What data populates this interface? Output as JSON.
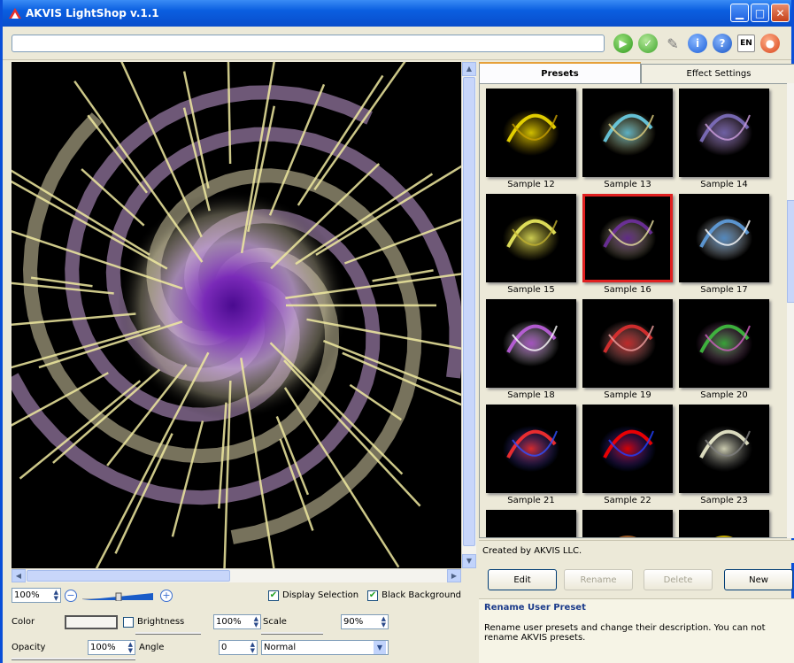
{
  "window": {
    "title": "AKVIS LightShop v.1.1"
  },
  "toolbar": {
    "path_value": "",
    "language": "EN"
  },
  "tabs": [
    {
      "label": "Presets",
      "active": true
    },
    {
      "label": "Effect Settings",
      "active": false
    }
  ],
  "presets": [
    {
      "label": "Sample 12",
      "selected": false
    },
    {
      "label": "Sample 13",
      "selected": false
    },
    {
      "label": "Sample 14",
      "selected": false
    },
    {
      "label": "Sample 15",
      "selected": false
    },
    {
      "label": "Sample 16",
      "selected": true
    },
    {
      "label": "Sample 17",
      "selected": false
    },
    {
      "label": "Sample 18",
      "selected": false
    },
    {
      "label": "Sample 19",
      "selected": false
    },
    {
      "label": "Sample 20",
      "selected": false
    },
    {
      "label": "Sample 21",
      "selected": false
    },
    {
      "label": "Sample 22",
      "selected": false
    },
    {
      "label": "Sample 23",
      "selected": false
    }
  ],
  "created_by": "Created by AKVIS LLC.",
  "buttons": {
    "edit": "Edit",
    "rename": "Rename",
    "delete": "Delete",
    "new": "New"
  },
  "info": {
    "title": "Rename User Preset",
    "text": "Rename user presets and change their description. You can not rename AKVIS presets."
  },
  "controls": {
    "zoom": "100%",
    "display_selection": "Display Selection",
    "display_selection_checked": true,
    "black_background": "Black Background",
    "black_background_checked": true,
    "color_label": "Color",
    "brightness_label": "Brightness",
    "brightness_checked": false,
    "brightness_value": "100%",
    "scale_label": "Scale",
    "scale_value": "90%",
    "opacity_label": "Opacity",
    "opacity_value": "100%",
    "angle_label": "Angle",
    "angle_value": "0",
    "blend_mode": "Normal"
  },
  "colors": {
    "title_bar": "#0a5ee0",
    "selection_outline": "#e02020",
    "spiral_center": "#6a1aa8",
    "ray_color": "#f0eaa0"
  }
}
